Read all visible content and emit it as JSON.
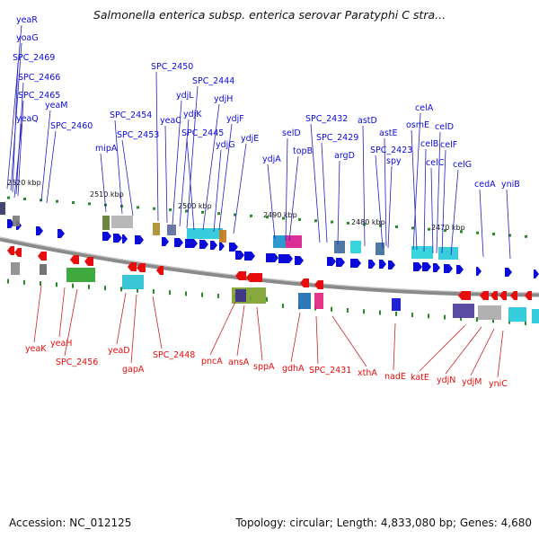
{
  "title": "Salmonella enterica subsp. enterica serovar Paratyphi C stra...",
  "footer": {
    "accession": "Accession: NC_012125",
    "topology": "Topology: circular; Length: 4,833,080 bp; Genes: 4,680"
  },
  "colors": {
    "forward": "#0b0bd9",
    "reverse": "#e80d0d",
    "backbone": "#7d7d7d",
    "ticks": "#2a8a2a"
  },
  "scale_labels": [
    "2520 kbp",
    "2510 kbp",
    "2500 kbp",
    "2490 kbp",
    "2480 kbp",
    "2470 kbp"
  ],
  "forward_genes": [
    "yeaR",
    "yoaG",
    "SPC_2469",
    "SPC_2466",
    "SPC_2465",
    "yeaQ",
    "yeaM",
    "SPC_2460",
    "mipA",
    "SPC_2454",
    "SPC_2453",
    "SPC_2450",
    "yeaC",
    "ydjL",
    "ydjK",
    "SPC_2444",
    "ydjH",
    "SPC_2445",
    "ydjF",
    "ydjG",
    "ydjE",
    "ydjA",
    "selD",
    "topB",
    "SPC_2432",
    "SPC_2429",
    "argD",
    "astD",
    "astE",
    "SPC_2423",
    "spy",
    "celA",
    "osmE",
    "celB",
    "celD",
    "celC",
    "celF",
    "celG",
    "cedA",
    "yniB"
  ],
  "reverse_genes": [
    "yeaK",
    "yeaH",
    "SPC_2456",
    "yeaD",
    "gapA",
    "SPC_2448",
    "pncA",
    "ansA",
    "sppA",
    "gdhA",
    "SPC_2431",
    "xthA",
    "nadE",
    "katE",
    "ydjN",
    "ydjM",
    "yniC"
  ]
}
